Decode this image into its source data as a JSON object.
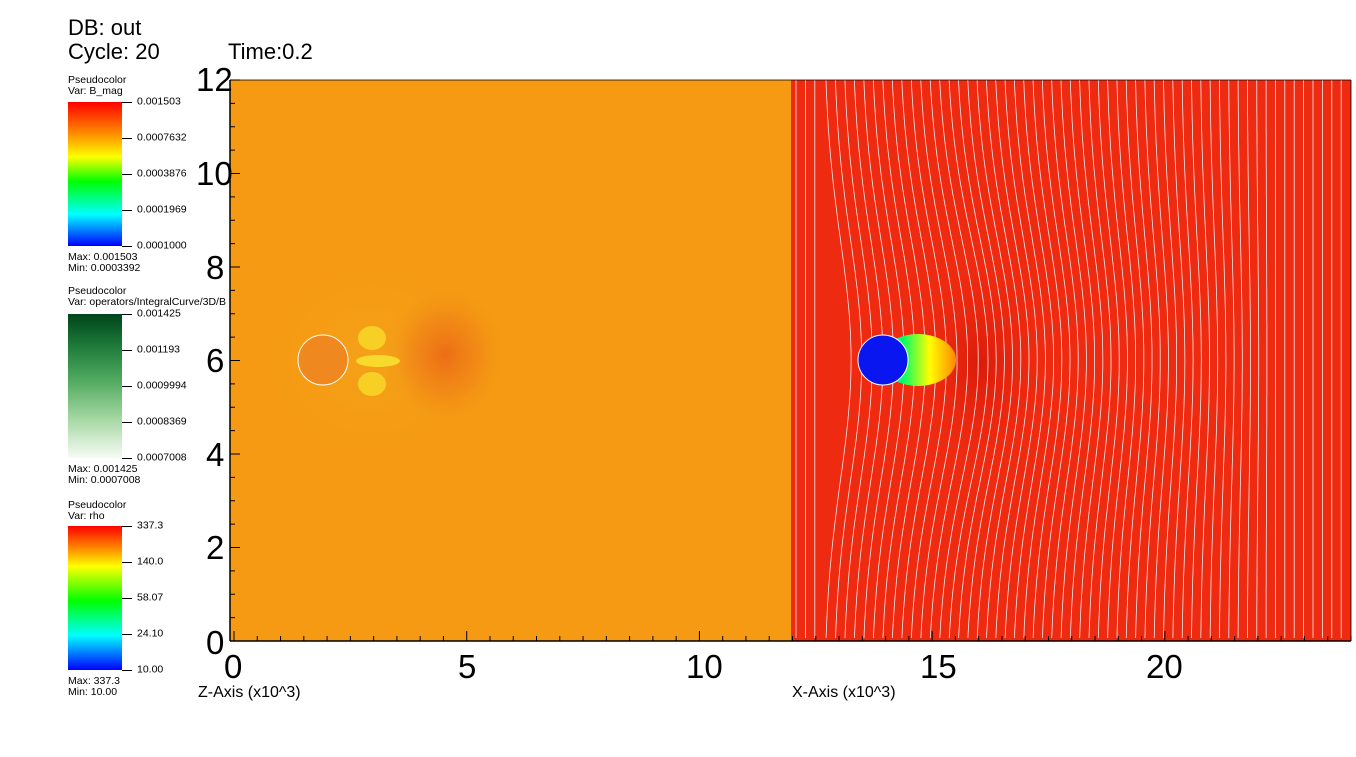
{
  "header": {
    "db": "DB: out",
    "cycle": "Cycle: 20",
    "time": "Time:0.2"
  },
  "legends": [
    {
      "plot": "Pseudocolor",
      "var": "Var: B_mag",
      "ticks": [
        "0.001503",
        "0.0007632",
        "0.0003876",
        "0.0001969",
        "0.0001000"
      ],
      "max": "Max:  0.001503",
      "min": "Min:  0.0003392",
      "colormap": "hot-rainbow"
    },
    {
      "plot": "Pseudocolor",
      "var": "Var: operators/IntegralCurve/3D/B",
      "ticks": [
        "0.001425",
        "0.001193",
        "0.0009994",
        "0.0008369",
        "0.0007008"
      ],
      "max": "Max:  0.001425",
      "min": "Min:  0.0007008",
      "colormap": "greens"
    },
    {
      "plot": "Pseudocolor",
      "var": "Var: rho",
      "ticks": [
        "337.3",
        "140.0",
        "58.07",
        "24.10",
        "10.00"
      ],
      "max": "Max:  337.3",
      "min": "Min:  10.00",
      "colormap": "hot-rainbow"
    }
  ],
  "axes": {
    "y_ticks": [
      "12",
      "10",
      "8",
      "6",
      "4",
      "2",
      "0"
    ],
    "x_ticks": [
      "0",
      "5",
      "10",
      "15",
      "20"
    ],
    "z_axis_label": "Z-Axis (x10^3)",
    "x_axis_label": "X-Axis (x10^3)"
  },
  "colors": {
    "left_panel_bg": "#f59a12",
    "right_panel_bg": "#ee2a10",
    "obstacle_left": "#f08820",
    "obstacle_right": "#0a16f0"
  }
}
